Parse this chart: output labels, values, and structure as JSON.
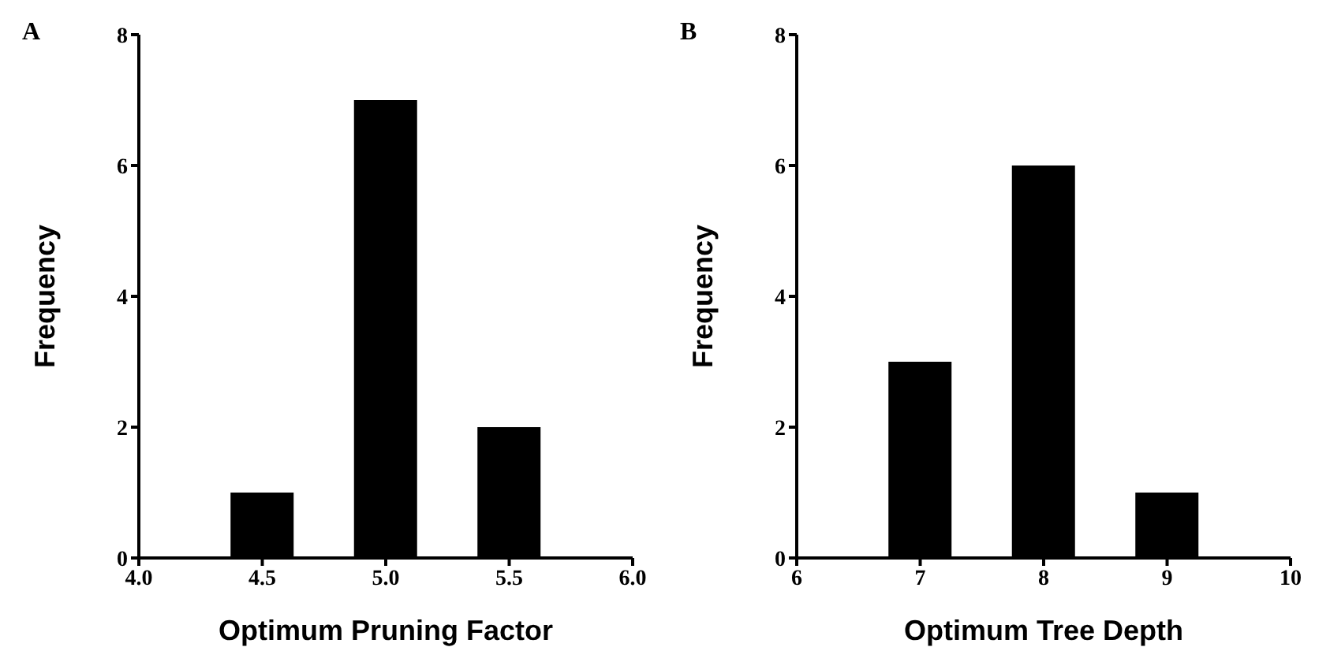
{
  "chart_data": [
    {
      "type": "bar",
      "title": "A",
      "xlabel": "Optimum Pruning Factor",
      "ylabel": "Frequency",
      "x": [
        4.5,
        5,
        5.5
      ],
      "values": [
        1,
        7,
        2
      ],
      "color": "#000000",
      "xlim": [
        4,
        6
      ],
      "xticks": [
        {
          "value": 4,
          "label": "4.0"
        },
        {
          "value": 4.5,
          "label": "4.5"
        },
        {
          "value": 5,
          "label": "5.0"
        },
        {
          "value": 5.5,
          "label": "5.5"
        },
        {
          "value": 6,
          "label": "6.0"
        }
      ],
      "ylim": [
        0,
        8
      ],
      "yticks": [
        0,
        2,
        4,
        6,
        8
      ],
      "grid": false,
      "legend": false
    },
    {
      "type": "bar",
      "title": "B",
      "xlabel": "Optimum Tree Depth",
      "ylabel": "Frequency",
      "x": [
        7,
        8,
        9
      ],
      "values": [
        3,
        6,
        1
      ],
      "color": "#000000",
      "xlim": [
        6,
        10
      ],
      "xticks": [
        6,
        7,
        8,
        9,
        10
      ],
      "ylim": [
        0,
        8
      ],
      "yticks": [
        0,
        2,
        4,
        6,
        8
      ],
      "grid": false,
      "legend": false
    }
  ]
}
